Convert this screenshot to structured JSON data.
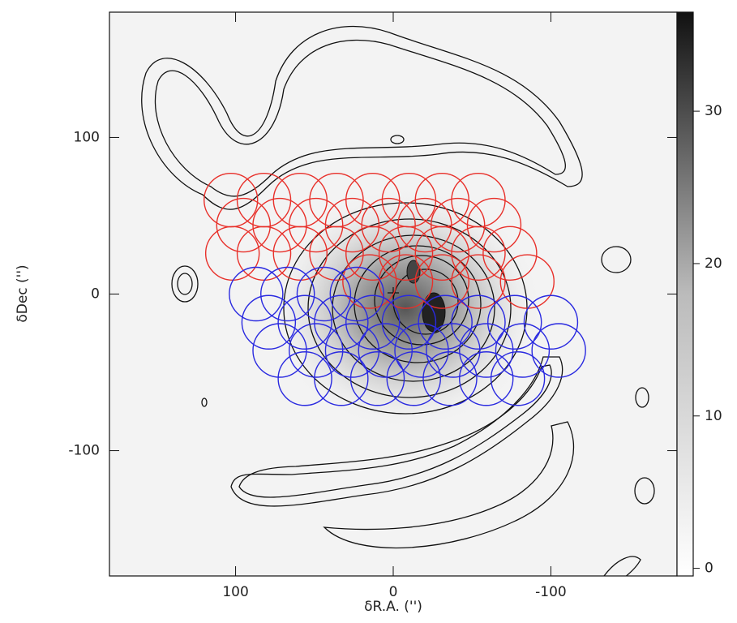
{
  "chart_data": {
    "type": "scatter",
    "x_label": "δR.A. ('')",
    "y_label": "δDec ('')",
    "xlim": [
      180,
      -180
    ],
    "ylim": [
      -180,
      180
    ],
    "xticks": [
      100,
      0,
      -100
    ],
    "yticks": [
      -100,
      0,
      100
    ],
    "clim": [
      -0.5,
      36.5
    ],
    "cticks": [
      0,
      10,
      20,
      30
    ],
    "series": [
      {
        "color": "#e8302a",
        "x": [
          103,
          82,
          59,
          36,
          13,
          -10,
          -31,
          -54,
          95,
          72,
          49,
          26,
          3,
          -20,
          -41,
          -64,
          102,
          82,
          59,
          36,
          13,
          -8,
          -31,
          -54,
          -74,
          15,
          -8,
          -31,
          -54,
          -85
        ],
        "y": [
          60,
          60,
          60,
          60,
          60,
          60,
          60,
          60,
          44,
          44,
          44,
          44,
          44,
          44,
          44,
          44,
          26,
          26,
          26,
          26,
          26,
          26,
          26,
          26,
          26,
          8,
          8,
          8,
          8,
          8
        ]
      },
      {
        "color": "#2a2ae0",
        "x": [
          87,
          67,
          44,
          23,
          79,
          56,
          33,
          13,
          -10,
          -33,
          -54,
          -77,
          -100,
          72,
          49,
          26,
          5,
          -18,
          -38,
          -59,
          -82,
          -105,
          56,
          33,
          10,
          -13,
          -36,
          -59,
          -79
        ],
        "y": [
          0,
          0,
          0,
          0,
          -18,
          -18,
          -18,
          -18,
          -18,
          -18,
          -18,
          -18,
          -18,
          -36,
          -36,
          -36,
          -36,
          -36,
          -36,
          -36,
          -36,
          -36,
          -54,
          -54,
          -54,
          -54,
          -54,
          -54,
          -54
        ]
      }
    ]
  }
}
